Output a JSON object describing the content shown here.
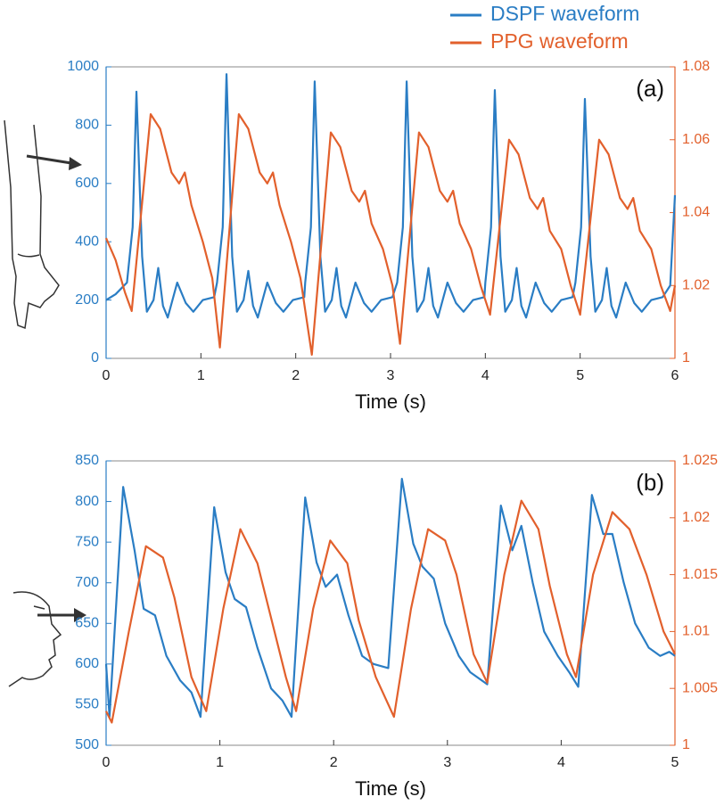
{
  "chart_data": [
    {
      "type": "line",
      "annotation": "(a)",
      "xlabel": "Time (s)",
      "xlim": [
        0,
        6
      ],
      "xticks": [
        0,
        1,
        2,
        3,
        4,
        5,
        6
      ],
      "ylim": [
        0,
        1000
      ],
      "yticks": [
        0,
        200,
        400,
        600,
        800,
        1000
      ],
      "y2lim": [
        1,
        1.08
      ],
      "y2ticks": [
        1,
        1.02,
        1.04,
        1.06,
        1.08
      ],
      "series": [
        {
          "name": "DSPF waveform",
          "color": "#2a7dc4",
          "x": [
            0,
            0.1,
            0.22,
            0.28,
            0.32,
            0.38,
            0.43,
            0.5,
            0.55,
            0.6,
            0.65,
            0.75,
            0.84,
            0.92,
            1.02,
            1.14,
            1.17,
            1.23,
            1.27,
            1.33,
            1.38,
            1.45,
            1.5,
            1.55,
            1.6,
            1.7,
            1.79,
            1.87,
            1.97,
            2.09,
            2.1,
            2.16,
            2.2,
            2.26,
            2.31,
            2.38,
            2.43,
            2.48,
            2.53,
            2.63,
            2.72,
            2.8,
            2.9,
            3.02,
            3.07,
            3.13,
            3.17,
            3.23,
            3.28,
            3.35,
            3.4,
            3.45,
            3.5,
            3.6,
            3.69,
            3.77,
            3.87,
            3.99,
            4.0,
            4.06,
            4.1,
            4.16,
            4.21,
            4.28,
            4.33,
            4.38,
            4.43,
            4.53,
            4.62,
            4.7,
            4.8,
            4.92,
            4.95,
            5.01,
            5.05,
            5.11,
            5.16,
            5.23,
            5.28,
            5.33,
            5.38,
            5.48,
            5.57,
            5.65,
            5.75,
            5.87,
            5.95,
            6.0
          ],
          "values": [
            200,
            220,
            260,
            450,
            915,
            350,
            160,
            200,
            310,
            180,
            140,
            260,
            190,
            160,
            200,
            210,
            260,
            450,
            975,
            350,
            160,
            200,
            300,
            180,
            140,
            260,
            190,
            160,
            200,
            210,
            260,
            450,
            950,
            350,
            160,
            200,
            310,
            180,
            140,
            260,
            190,
            160,
            200,
            210,
            260,
            450,
            950,
            350,
            160,
            200,
            310,
            180,
            140,
            260,
            190,
            160,
            200,
            210,
            260,
            450,
            920,
            350,
            160,
            200,
            310,
            180,
            140,
            260,
            190,
            160,
            200,
            210,
            260,
            450,
            890,
            350,
            160,
            200,
            310,
            180,
            140,
            260,
            190,
            160,
            200,
            210,
            250,
            560
          ]
        },
        {
          "name": "PPG waveform",
          "color": "#e2602c",
          "axis": "y2",
          "x": [
            0,
            0.1,
            0.2,
            0.27,
            0.47,
            0.57,
            0.69,
            0.77,
            0.83,
            0.9,
            1.02,
            1.12,
            1.2,
            1.4,
            1.5,
            1.62,
            1.7,
            1.76,
            1.83,
            1.95,
            2.05,
            2.17,
            2.37,
            2.47,
            2.59,
            2.67,
            2.73,
            2.8,
            2.92,
            3.02,
            3.1,
            3.3,
            3.4,
            3.52,
            3.6,
            3.66,
            3.73,
            3.85,
            3.95,
            4.05,
            4.25,
            4.35,
            4.47,
            4.55,
            4.61,
            4.68,
            4.8,
            4.9,
            5.0,
            5.2,
            5.3,
            5.42,
            5.5,
            5.56,
            5.63,
            5.75,
            5.85,
            5.95,
            6.0
          ],
          "values": [
            1.033,
            1.027,
            1.018,
            1.013,
            1.067,
            1.063,
            1.051,
            1.048,
            1.051,
            1.042,
            1.032,
            1.022,
            1.003,
            1.067,
            1.063,
            1.051,
            1.048,
            1.051,
            1.042,
            1.032,
            1.022,
            1.001,
            1.062,
            1.058,
            1.046,
            1.043,
            1.046,
            1.037,
            1.03,
            1.02,
            1.004,
            1.062,
            1.058,
            1.046,
            1.043,
            1.046,
            1.037,
            1.03,
            1.02,
            1.012,
            1.06,
            1.056,
            1.044,
            1.041,
            1.044,
            1.035,
            1.03,
            1.02,
            1.012,
            1.06,
            1.056,
            1.044,
            1.041,
            1.044,
            1.035,
            1.03,
            1.02,
            1.013,
            1.02
          ]
        }
      ]
    },
    {
      "type": "line",
      "annotation": "(b)",
      "xlabel": "Time (s)",
      "xlim": [
        0,
        5
      ],
      "xticks": [
        0,
        1,
        2,
        3,
        4,
        5
      ],
      "ylim": [
        500,
        850
      ],
      "yticks": [
        500,
        550,
        600,
        650,
        700,
        750,
        800,
        850
      ],
      "y2lim": [
        1,
        1.025
      ],
      "y2ticks": [
        1,
        1.005,
        1.01,
        1.015,
        1.02,
        1.025
      ],
      "series": [
        {
          "color": "#2a7dc4",
          "x": [
            0,
            0.03,
            0.15,
            0.25,
            0.33,
            0.43,
            0.53,
            0.65,
            0.75,
            0.83,
            0.95,
            1.05,
            1.13,
            1.23,
            1.33,
            1.45,
            1.55,
            1.63,
            1.75,
            1.85,
            1.93,
            2.03,
            2.13,
            2.25,
            2.35,
            2.48,
            2.6,
            2.7,
            2.78,
            2.88,
            2.98,
            3.1,
            3.2,
            3.35,
            3.47,
            3.57,
            3.65,
            3.75,
            3.85,
            3.97,
            4.07,
            4.15,
            4.27,
            4.37,
            4.45,
            4.55,
            4.65,
            4.77,
            4.87,
            4.95,
            5.0
          ],
          "values": [
            600,
            535,
            818,
            740,
            668,
            660,
            610,
            580,
            565,
            535,
            793,
            713,
            680,
            670,
            620,
            570,
            555,
            535,
            805,
            725,
            695,
            710,
            660,
            610,
            600,
            595,
            828,
            748,
            720,
            705,
            650,
            610,
            590,
            575,
            795,
            740,
            770,
            700,
            640,
            610,
            590,
            572,
            808,
            760,
            760,
            700,
            650,
            620,
            610,
            615,
            610
          ]
        },
        {
          "color": "#e2602c",
          "axis": "y2",
          "x": [
            0,
            0.05,
            0.2,
            0.35,
            0.5,
            0.6,
            0.75,
            0.88,
            1.03,
            1.18,
            1.33,
            1.43,
            1.58,
            1.67,
            1.82,
            1.97,
            2.12,
            2.22,
            2.37,
            2.53,
            2.68,
            2.83,
            2.98,
            3.08,
            3.23,
            3.35,
            3.5,
            3.65,
            3.8,
            3.9,
            4.05,
            4.13,
            4.28,
            4.45,
            4.6,
            4.75,
            4.9,
            5.0
          ],
          "values": [
            1.003,
            1.002,
            1.01,
            1.0175,
            1.0165,
            1.013,
            1.006,
            1.003,
            1.012,
            1.019,
            1.016,
            1.012,
            1.006,
            1.003,
            1.012,
            1.018,
            1.016,
            1.011,
            1.006,
            1.0025,
            1.012,
            1.019,
            1.018,
            1.015,
            1.008,
            1.0055,
            1.015,
            1.0215,
            1.019,
            1.014,
            1.008,
            1.006,
            1.015,
            1.0205,
            1.019,
            1.015,
            1.01,
            1.008
          ]
        }
      ]
    }
  ]
}
